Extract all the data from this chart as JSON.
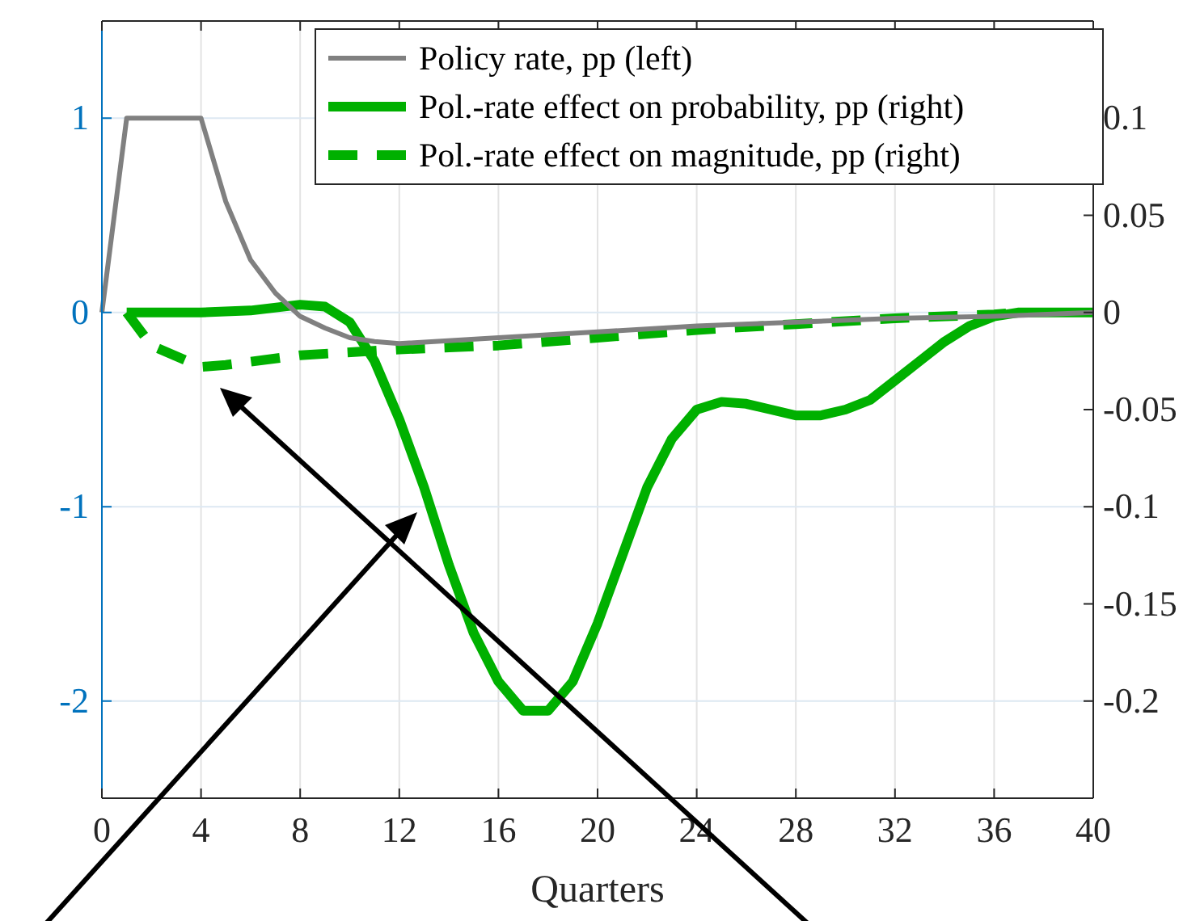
{
  "chart_data": {
    "type": "line",
    "xlabel": "Quarters",
    "xlim": [
      0,
      40
    ],
    "xticks": [
      0,
      4,
      8,
      12,
      16,
      20,
      24,
      28,
      32,
      36,
      40
    ],
    "ylim": [
      -2.5,
      1.5
    ],
    "yticks": [
      -2,
      -1,
      0,
      1
    ],
    "y2lim": [
      -0.25,
      0.15
    ],
    "y2ticks": [
      -0.2,
      -0.15,
      -0.1,
      -0.05,
      0,
      0.05,
      0.1
    ],
    "grid": true,
    "legend": "top right",
    "series": [
      {
        "name": "Policy rate, pp (left)",
        "color": "#808080",
        "line_style": "solid",
        "x": [
          0,
          1,
          2,
          3,
          4,
          5,
          6,
          7,
          8,
          9,
          10,
          11,
          12,
          16,
          20,
          24,
          28,
          32,
          36,
          40
        ],
        "values": [
          0,
          1,
          1,
          1,
          1,
          0.57,
          0.27,
          0.1,
          -0.02,
          -0.08,
          -0.13,
          -0.15,
          -0.16,
          -0.13,
          -0.1,
          -0.07,
          -0.05,
          -0.03,
          -0.02,
          0
        ]
      },
      {
        "name": "Pol.-rate effect on probability, pp (right)",
        "color": "#00b000",
        "axis": "y2",
        "line_style": "solid",
        "x": [
          1,
          4,
          6,
          8,
          9,
          10,
          11,
          12,
          13,
          14,
          15,
          16,
          17,
          18,
          19,
          20,
          21,
          22,
          23,
          24,
          25,
          26,
          27,
          28,
          29,
          30,
          31,
          32,
          33,
          34,
          35,
          36,
          37,
          40
        ],
        "values": [
          0,
          0,
          0.001,
          0.004,
          0.003,
          -0.005,
          -0.025,
          -0.055,
          -0.09,
          -0.13,
          -0.165,
          -0.19,
          -0.205,
          -0.205,
          -0.19,
          -0.16,
          -0.125,
          -0.09,
          -0.065,
          -0.05,
          -0.046,
          -0.047,
          -0.05,
          -0.053,
          -0.053,
          -0.05,
          -0.045,
          -0.035,
          -0.025,
          -0.015,
          -0.007,
          -0.002,
          0,
          0
        ]
      },
      {
        "name": "Pol.-rate effect on magnitude, pp (right)",
        "color": "#00b000",
        "axis": "y2",
        "line_style": "dashed",
        "x": [
          1,
          2,
          4,
          5,
          8,
          12,
          16,
          20,
          24,
          28,
          32,
          36,
          37
        ],
        "values": [
          0,
          -0.017,
          -0.028,
          -0.027,
          -0.022,
          -0.019,
          -0.017,
          -0.013,
          -0.009,
          -0.006,
          -0.003,
          -0.001,
          0
        ]
      }
    ]
  }
}
